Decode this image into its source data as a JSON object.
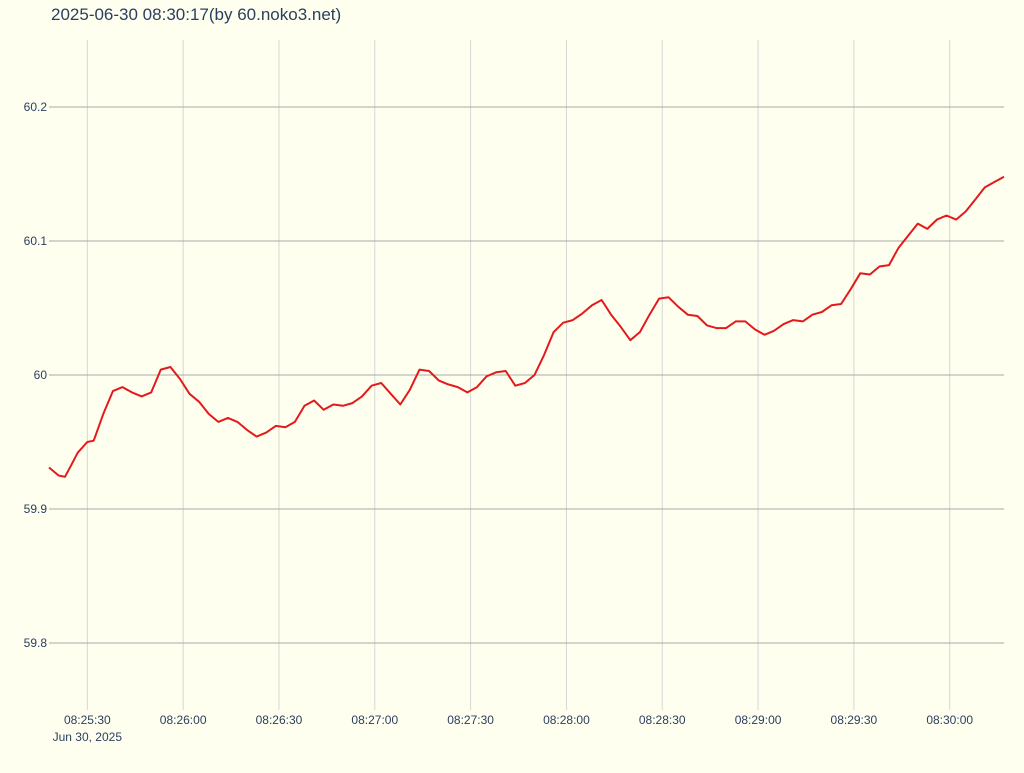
{
  "chart_data": {
    "type": "line",
    "title": "2025-06-30 08:30:17(by 60.noko3.net)",
    "x_date_label": "Jun 30, 2025",
    "color": "#e31a1c",
    "grid": true,
    "x": [
      "08:25:18",
      "08:25:21",
      "08:25:23",
      "08:25:25",
      "08:25:27",
      "08:25:30",
      "08:25:32",
      "08:25:35",
      "08:25:38",
      "08:25:41",
      "08:25:44",
      "08:25:47",
      "08:25:50",
      "08:25:53",
      "08:25:56",
      "08:25:59",
      "08:26:02",
      "08:26:05",
      "08:26:08",
      "08:26:11",
      "08:26:14",
      "08:26:17",
      "08:26:20",
      "08:26:23",
      "08:26:26",
      "08:26:29",
      "08:26:32",
      "08:26:35",
      "08:26:38",
      "08:26:41",
      "08:26:44",
      "08:26:47",
      "08:26:50",
      "08:26:53",
      "08:26:56",
      "08:26:59",
      "08:27:02",
      "08:27:05",
      "08:27:08",
      "08:27:11",
      "08:27:14",
      "08:27:17",
      "08:27:20",
      "08:27:23",
      "08:27:26",
      "08:27:29",
      "08:27:32",
      "08:27:35",
      "08:27:38",
      "08:27:41",
      "08:27:44",
      "08:27:47",
      "08:27:50",
      "08:27:53",
      "08:27:56",
      "08:27:59",
      "08:28:02",
      "08:28:05",
      "08:28:08",
      "08:28:11",
      "08:28:14",
      "08:28:17",
      "08:28:20",
      "08:28:23",
      "08:28:26",
      "08:28:29",
      "08:28:32",
      "08:28:35",
      "08:28:38",
      "08:28:41",
      "08:28:44",
      "08:28:47",
      "08:28:50",
      "08:28:53",
      "08:28:56",
      "08:28:59",
      "08:29:02",
      "08:29:05",
      "08:29:08",
      "08:29:11",
      "08:29:14",
      "08:29:17",
      "08:29:20",
      "08:29:23",
      "08:29:26",
      "08:29:29",
      "08:29:32",
      "08:29:35",
      "08:29:38",
      "08:29:41",
      "08:29:44",
      "08:29:47",
      "08:29:50",
      "08:29:53",
      "08:29:56",
      "08:29:59",
      "08:30:02",
      "08:30:05",
      "08:30:08",
      "08:30:11",
      "08:30:14",
      "08:30:17"
    ],
    "values": [
      59.931,
      59.925,
      59.924,
      59.933,
      59.942,
      59.95,
      59.951,
      59.971,
      59.988,
      59.991,
      59.987,
      59.984,
      59.987,
      60.004,
      60.006,
      59.997,
      59.986,
      59.98,
      59.971,
      59.965,
      59.968,
      59.965,
      59.959,
      59.954,
      59.957,
      59.962,
      59.961,
      59.965,
      59.977,
      59.981,
      59.974,
      59.978,
      59.977,
      59.979,
      59.984,
      59.992,
      59.994,
      59.986,
      59.978,
      59.989,
      60.004,
      60.003,
      59.996,
      59.993,
      59.991,
      59.987,
      59.991,
      59.999,
      60.002,
      60.003,
      59.992,
      59.994,
      60.0,
      60.015,
      60.032,
      60.039,
      60.041,
      60.046,
      60.052,
      60.056,
      60.045,
      60.036,
      60.026,
      60.032,
      60.045,
      60.057,
      60.058,
      60.051,
      60.045,
      60.044,
      60.037,
      60.035,
      60.035,
      60.04,
      60.04,
      60.034,
      60.03,
      60.033,
      60.038,
      60.041,
      60.04,
      60.045,
      60.047,
      60.052,
      60.053,
      60.064,
      60.076,
      60.075,
      60.081,
      60.082,
      60.095,
      60.104,
      60.113,
      60.109,
      60.116,
      60.119,
      60.116,
      60.122,
      60.131,
      60.14,
      60.144,
      60.148
    ],
    "xlim": [
      "08:25:18",
      "08:30:17"
    ],
    "xticks": [
      "08:25:30",
      "08:26:00",
      "08:26:30",
      "08:27:00",
      "08:27:30",
      "08:28:00",
      "08:28:30",
      "08:29:00",
      "08:29:30",
      "08:30:00"
    ],
    "ylim": [
      59.75,
      60.25
    ],
    "yticks": [
      59.8,
      59.9,
      60,
      60.1,
      60.2
    ]
  }
}
